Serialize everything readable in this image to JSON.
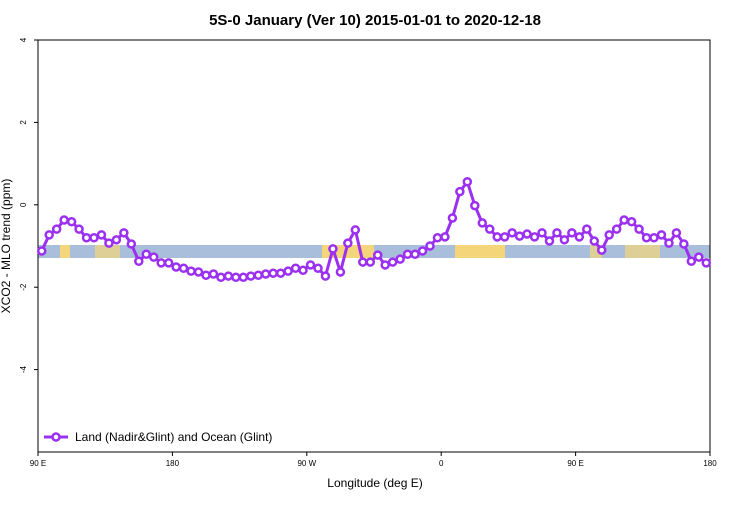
{
  "chart_data": {
    "type": "line",
    "title": "5S-0 January (Ver 10)   2015-01-01 to 2020-12-18",
    "x_label": "Longitude (deg E)",
    "y_label": "XCO2 - MLO trend (ppm)",
    "x": [
      92.5,
      97.5,
      102.5,
      107.5,
      112.5,
      117.5,
      122.5,
      127.5,
      132.5,
      137.5,
      142.5,
      147.5,
      152.5,
      157.5,
      162.5,
      167.5,
      172.5,
      177.5,
      182.5,
      187.5,
      192.5,
      197.5,
      202.5,
      207.5,
      212.5,
      217.5,
      222.5,
      227.5,
      232.5,
      237.5,
      242.5,
      247.5,
      252.5,
      257.5,
      262.5,
      267.5,
      272.5,
      277.5,
      282.5,
      287.5,
      292.5,
      297.5,
      302.5,
      307.5,
      312.5,
      317.5,
      322.5,
      327.5,
      332.5,
      337.5,
      342.5,
      347.5,
      352.5,
      357.5,
      362.5,
      367.5,
      372.5,
      377.5,
      382.5,
      387.5,
      392.5,
      397.5,
      402.5,
      407.5,
      412.5,
      417.5,
      422.5,
      427.5,
      432.5,
      437.5,
      442.5,
      447.5,
      452.5,
      457.5,
      462.5,
      467.5,
      472.5,
      477.5,
      482.5,
      487.5,
      492.5,
      497.5,
      502.5,
      507.5,
      512.5,
      517.5,
      522.5,
      527.5,
      532.5,
      537.5
    ],
    "series": [
      {
        "name": "Land (Nadir&Glint) and Ocean (Glint)",
        "color": "#9b30f0",
        "values": [
          -1.12,
          -0.73,
          -0.59,
          -0.37,
          -0.41,
          -0.59,
          -0.8,
          -0.8,
          -0.73,
          -0.93,
          -0.85,
          -0.68,
          -0.95,
          -1.37,
          -1.2,
          -1.27,
          -1.41,
          -1.41,
          -1.51,
          -1.54,
          -1.61,
          -1.63,
          -1.71,
          -1.68,
          -1.76,
          -1.73,
          -1.76,
          -1.76,
          -1.73,
          -1.71,
          -1.68,
          -1.66,
          -1.66,
          -1.61,
          -1.54,
          -1.59,
          -1.46,
          -1.54,
          -1.73,
          -1.07,
          -1.63,
          -0.93,
          -0.61,
          -1.39,
          -1.39,
          -1.22,
          -1.46,
          -1.39,
          -1.32,
          -1.2,
          -1.2,
          -1.12,
          -1.0,
          -0.8,
          -0.78,
          -0.32,
          0.32,
          0.56,
          -0.02,
          -0.44,
          -0.59,
          -0.78,
          -0.78,
          -0.68,
          -0.76,
          -0.71,
          -0.78,
          -0.68,
          -0.88,
          -0.68,
          -0.85,
          -0.68,
          -0.78,
          -0.59,
          -0.88,
          -1.1,
          -0.73,
          -0.59,
          -0.37,
          -0.41,
          -0.59,
          -0.8,
          -0.8,
          -0.73,
          -0.93,
          -0.68,
          -0.95,
          -1.37,
          -1.27,
          -1.41
        ]
      }
    ],
    "xlim": [
      90,
      540
    ],
    "xticks": [
      {
        "value": 90,
        "label": "90 E"
      },
      180,
      {
        "value": 270,
        "label": "90 W"
      },
      {
        "value": 360,
        "label": "0"
      },
      {
        "value": 450,
        "label": "90 E"
      },
      {
        "value": 540,
        "label": "180"
      }
    ],
    "ylim": [
      -6,
      4
    ],
    "yticks": [
      -4,
      -2,
      0,
      2,
      4
    ],
    "legend": "bottom-left"
  }
}
